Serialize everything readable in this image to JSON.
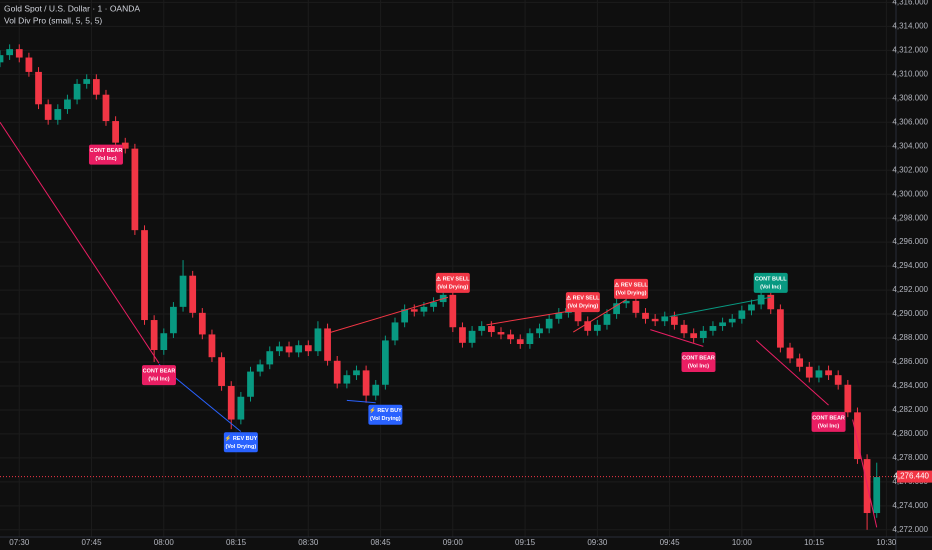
{
  "header": {
    "symbol": "Gold Spot / U.S. Dollar · 1 · OANDA",
    "indicator": "Vol Div Pro (small, 5, 5, 5)"
  },
  "chart_data": {
    "type": "candlestick",
    "up_color": "#089981",
    "down_color": "#f23645",
    "grid": true,
    "xlim": [
      "07:26",
      "10:32"
    ],
    "xticks": [
      "07:30",
      "07:45",
      "08:00",
      "08:15",
      "08:30",
      "08:45",
      "09:00",
      "09:15",
      "09:30",
      "09:45",
      "10:00",
      "10:15",
      "10:30"
    ],
    "ylim": [
      4271.4,
      4316.2
    ],
    "yticks": [
      {
        "value": 4272,
        "label": "4,272.000"
      },
      {
        "value": 4274,
        "label": "4,274.000"
      },
      {
        "value": 4276,
        "label": "4,276.000"
      },
      {
        "value": 4278,
        "label": "4,278.000"
      },
      {
        "value": 4280,
        "label": "4,280.000"
      },
      {
        "value": 4282,
        "label": "4,282.000"
      },
      {
        "value": 4284,
        "label": "4,284.000"
      },
      {
        "value": 4286,
        "label": "4,286.000"
      },
      {
        "value": 4288,
        "label": "4,288.000"
      },
      {
        "value": 4290,
        "label": "4,290.000"
      },
      {
        "value": 4292,
        "label": "4,292.000"
      },
      {
        "value": 4294,
        "label": "4,294.000"
      },
      {
        "value": 4296,
        "label": "4,296.000"
      },
      {
        "value": 4298,
        "label": "4,298.000"
      },
      {
        "value": 4300,
        "label": "4,300.000"
      },
      {
        "value": 4302,
        "label": "4,302.000"
      },
      {
        "value": 4304,
        "label": "4,304.000"
      },
      {
        "value": 4306,
        "label": "4,306.000"
      },
      {
        "value": 4308,
        "label": "4,308.000"
      },
      {
        "value": 4310,
        "label": "4,310.000"
      },
      {
        "value": 4312,
        "label": "4,312.000"
      },
      {
        "value": 4314,
        "label": "4,314.000"
      },
      {
        "value": 4316,
        "label": "4,316.000"
      }
    ],
    "x": [
      "07:26",
      "07:28",
      "07:30",
      "07:32",
      "07:34",
      "07:36",
      "07:38",
      "07:40",
      "07:42",
      "07:44",
      "07:46",
      "07:48",
      "07:50",
      "07:52",
      "07:54",
      "07:56",
      "07:58",
      "08:00",
      "08:02",
      "08:04",
      "08:06",
      "08:08",
      "08:10",
      "08:12",
      "08:14",
      "08:16",
      "08:18",
      "08:20",
      "08:22",
      "08:24",
      "08:26",
      "08:28",
      "08:30",
      "08:32",
      "08:34",
      "08:36",
      "08:38",
      "08:40",
      "08:42",
      "08:44",
      "08:46",
      "08:48",
      "08:50",
      "08:52",
      "08:54",
      "08:56",
      "08:58",
      "09:00",
      "09:02",
      "09:04",
      "09:06",
      "09:08",
      "09:10",
      "09:12",
      "09:14",
      "09:16",
      "09:18",
      "09:20",
      "09:22",
      "09:24",
      "09:26",
      "09:28",
      "09:30",
      "09:32",
      "09:34",
      "09:36",
      "09:38",
      "09:40",
      "09:42",
      "09:44",
      "09:46",
      "09:48",
      "09:50",
      "09:52",
      "09:54",
      "09:56",
      "09:58",
      "10:00",
      "10:02",
      "10:04",
      "10:06",
      "10:08",
      "10:10",
      "10:12",
      "10:14",
      "10:16",
      "10:18",
      "10:20",
      "10:22",
      "10:24",
      "10:26",
      "10:28"
    ],
    "open": [
      4311.0,
      4311.6,
      4312.1,
      4311.4,
      4310.2,
      4307.5,
      4306.2,
      4307.1,
      4307.9,
      4309.2,
      4309.6,
      4308.3,
      4306.1,
      4304.3,
      4303.8,
      4297.0,
      4289.5,
      4287.0,
      4288.4,
      4290.6,
      4293.2,
      4290.1,
      4288.3,
      4286.4,
      4284.0,
      4281.2,
      4283.1,
      4285.2,
      4285.8,
      4286.9,
      4287.3,
      4286.8,
      4287.4,
      4286.9,
      4288.8,
      4286.1,
      4284.2,
      4284.9,
      4285.3,
      4283.2,
      4284.1,
      4287.8,
      4289.3,
      4290.4,
      4290.2,
      4290.6,
      4291.0,
      4291.6,
      4288.9,
      4287.6,
      4288.6,
      4289.0,
      4288.5,
      4288.3,
      4287.9,
      4287.5,
      4288.4,
      4288.8,
      4289.6,
      4290.1,
      4290.5,
      4289.4,
      4288.6,
      4289.1,
      4290.0,
      4290.9,
      4291.1,
      4290.1,
      4289.6,
      4289.4,
      4289.8,
      4289.1,
      4288.4,
      4288.0,
      4288.6,
      4289.0,
      4289.3,
      4289.6,
      4290.3,
      4290.8,
      4291.6,
      4290.4,
      4287.2,
      4286.3,
      4285.6,
      4284.7,
      4285.3,
      4284.9,
      4284.1,
      4281.8,
      4277.9,
      4273.4
    ],
    "high": [
      4312.0,
      4312.5,
      4312.5,
      4311.8,
      4310.6,
      4307.9,
      4307.5,
      4308.3,
      4309.6,
      4310.0,
      4310.0,
      4308.7,
      4306.5,
      4304.7,
      4304.2,
      4297.4,
      4289.9,
      4288.8,
      4291.0,
      4294.5,
      4293.6,
      4290.5,
      4288.7,
      4286.8,
      4284.4,
      4283.5,
      4285.6,
      4286.2,
      4287.3,
      4287.7,
      4287.7,
      4287.8,
      4287.8,
      4289.4,
      4289.2,
      4286.5,
      4285.3,
      4285.7,
      4285.7,
      4284.5,
      4288.2,
      4289.7,
      4290.8,
      4290.8,
      4291.0,
      4291.4,
      4292.0,
      4292.0,
      4289.3,
      4289.0,
      4289.4,
      4289.4,
      4288.9,
      4288.7,
      4288.3,
      4288.8,
      4289.2,
      4290.0,
      4290.5,
      4290.9,
      4290.9,
      4289.8,
      4289.5,
      4290.4,
      4291.3,
      4291.5,
      4291.5,
      4290.5,
      4290.0,
      4290.2,
      4290.2,
      4289.5,
      4288.8,
      4289.0,
      4289.4,
      4289.7,
      4290.0,
      4290.7,
      4291.2,
      4292.0,
      4292.0,
      4290.8,
      4287.6,
      4286.7,
      4286.0,
      4285.7,
      4285.7,
      4285.3,
      4284.5,
      4282.2,
      4278.3,
      4277.6
    ],
    "low": [
      4310.6,
      4311.2,
      4311.0,
      4309.8,
      4307.1,
      4305.8,
      4305.8,
      4306.7,
      4307.5,
      4308.8,
      4307.9,
      4305.7,
      4303.9,
      4303.4,
      4296.6,
      4289.1,
      4286.0,
      4286.6,
      4288.0,
      4290.2,
      4289.7,
      4287.9,
      4286.0,
      4283.6,
      4280.4,
      4280.8,
      4282.7,
      4284.8,
      4285.4,
      4286.5,
      4286.4,
      4286.4,
      4286.5,
      4286.5,
      4285.7,
      4283.8,
      4283.8,
      4284.5,
      4282.6,
      4282.8,
      4283.7,
      4287.4,
      4288.9,
      4289.8,
      4289.8,
      4290.2,
      4290.6,
      4288.5,
      4287.2,
      4287.2,
      4288.2,
      4288.1,
      4287.9,
      4287.5,
      4287.1,
      4287.1,
      4288.0,
      4288.4,
      4289.2,
      4289.7,
      4289.0,
      4288.2,
      4288.2,
      4288.7,
      4289.6,
      4290.5,
      4289.7,
      4289.2,
      4289.0,
      4289.0,
      4288.7,
      4288.0,
      4287.6,
      4287.6,
      4288.2,
      4288.6,
      4288.9,
      4289.2,
      4289.9,
      4290.4,
      4290.0,
      4286.8,
      4285.9,
      4285.2,
      4284.3,
      4284.3,
      4284.5,
      4283.7,
      4281.4,
      4277.5,
      4272.0,
      4273.0
    ],
    "close": [
      4311.6,
      4312.1,
      4311.4,
      4310.2,
      4307.5,
      4306.2,
      4307.1,
      4307.9,
      4309.2,
      4309.6,
      4308.3,
      4306.1,
      4304.3,
      4303.8,
      4297.0,
      4289.5,
      4287.0,
      4288.4,
      4290.6,
      4293.2,
      4290.1,
      4288.3,
      4286.4,
      4284.0,
      4281.2,
      4283.1,
      4285.2,
      4285.8,
      4286.9,
      4287.3,
      4286.8,
      4287.4,
      4286.9,
      4288.8,
      4286.1,
      4284.2,
      4284.9,
      4285.3,
      4283.2,
      4284.1,
      4287.8,
      4289.3,
      4290.4,
      4290.2,
      4290.6,
      4291.0,
      4291.6,
      4288.9,
      4287.6,
      4288.6,
      4289.0,
      4288.5,
      4288.3,
      4287.9,
      4287.5,
      4288.4,
      4288.8,
      4289.6,
      4290.1,
      4290.5,
      4289.4,
      4288.6,
      4289.1,
      4290.0,
      4290.9,
      4291.1,
      4290.1,
      4289.6,
      4289.4,
      4289.8,
      4289.1,
      4288.4,
      4288.0,
      4288.6,
      4289.0,
      4289.3,
      4289.6,
      4290.3,
      4290.8,
      4291.6,
      4290.4,
      4287.2,
      4286.3,
      4285.6,
      4284.7,
      4285.3,
      4284.9,
      4284.1,
      4281.8,
      4277.9,
      4273.4,
      4276.4
    ],
    "last_price": {
      "value": 4276.44,
      "label": "4,276.440",
      "color": "#f23645"
    },
    "lines": [
      {
        "x": [
          "07:26",
          "07:59"
        ],
        "y": [
          4306.0,
          4285.9
        ],
        "color": "#e91e63"
      },
      {
        "x": [
          "07:59",
          "08:16"
        ],
        "y": [
          4285.8,
          4280.2
        ],
        "color": "#2962ff"
      },
      {
        "x": [
          "08:38",
          "08:44"
        ],
        "y": [
          4282.8,
          4282.6
        ],
        "color": "#2962ff"
      },
      {
        "x": [
          "08:34",
          "08:59"
        ],
        "y": [
          4288.4,
          4291.4
        ],
        "color": "#f23645"
      },
      {
        "x": [
          "09:07",
          "09:25"
        ],
        "y": [
          4289.1,
          4290.3
        ],
        "color": "#f23645"
      },
      {
        "x": [
          "09:25",
          "09:36"
        ],
        "y": [
          4288.5,
          4291.2
        ],
        "color": "#f23645"
      },
      {
        "x": [
          "09:41",
          "09:52"
        ],
        "y": [
          4288.7,
          4287.3
        ],
        "color": "#e91e63"
      },
      {
        "x": [
          "09:45",
          "10:06"
        ],
        "y": [
          4289.8,
          4291.4
        ],
        "color": "#089981"
      },
      {
        "x": [
          "10:03",
          "10:18"
        ],
        "y": [
          4287.8,
          4282.4
        ],
        "color": "#e91e63"
      },
      {
        "x": [
          "10:23",
          "10:28"
        ],
        "y": [
          4281.2,
          4272.2
        ],
        "color": "#e91e63"
      }
    ],
    "annotations": [
      {
        "x": "07:48",
        "y": 4303.3,
        "text": [
          "CONT BEAR",
          "(Vol Inc)"
        ],
        "color": "#e91e63"
      },
      {
        "x": "07:59",
        "y": 4284.9,
        "text": [
          "CONT BEAR",
          "(Vol Inc)"
        ],
        "color": "#e91e63"
      },
      {
        "x": "08:16",
        "y": 4279.3,
        "text": [
          "⚡ REV BUY",
          "(Vol Drying)"
        ],
        "color": "#2962ff"
      },
      {
        "x": "08:46",
        "y": 4281.6,
        "text": [
          "⚡ REV BUY",
          "(Vol Drying)"
        ],
        "color": "#2962ff"
      },
      {
        "x": "09:00",
        "y": 4292.6,
        "text": [
          "⚠ REV SELL",
          "(Vol Drying)"
        ],
        "color": "#f23645"
      },
      {
        "x": "09:27",
        "y": 4291.0,
        "text": [
          "⚠ REV SELL",
          "(Vol Drying)"
        ],
        "color": "#f23645"
      },
      {
        "x": "09:37",
        "y": 4292.1,
        "text": [
          "⚠ REV SELL",
          "(Vol Drying)"
        ],
        "color": "#f23645"
      },
      {
        "x": "10:06",
        "y": 4292.6,
        "text": [
          "CONT BULL",
          "(Vol Inc)"
        ],
        "color": "#089981"
      },
      {
        "x": "09:51",
        "y": 4286.0,
        "text": [
          "CONT BEAR",
          "(Vol Inc)"
        ],
        "color": "#e91e63"
      },
      {
        "x": "10:18",
        "y": 4281.0,
        "text": [
          "CONT BEAR",
          "(Vol Inc)"
        ],
        "color": "#e91e63"
      }
    ]
  }
}
